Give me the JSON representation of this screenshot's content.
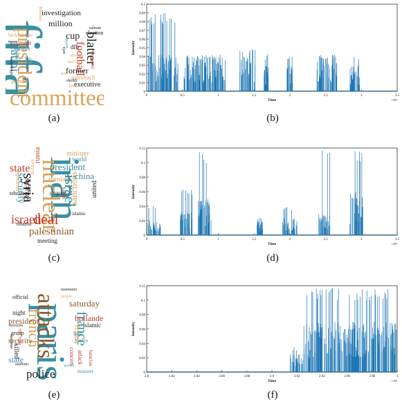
{
  "captions": [
    "(a)",
    "(b)",
    "(c)",
    "(d)",
    "(e)",
    "(f)"
  ],
  "colors": {
    "line": "#1f77b4",
    "teal": "#3a8fa0",
    "tan": "#d9a35c",
    "red": "#c0392b",
    "dark": "#222222",
    "brown": "#8b5a2b"
  },
  "clouds": [
    {
      "words": [
        {
          "t": "fifa",
          "c": "teal"
        },
        {
          "t": "committee",
          "c": "tan"
        },
        {
          "t": "president",
          "c": "tan"
        },
        {
          "t": "platini",
          "c": "teal"
        },
        {
          "t": "blatter",
          "c": "dark"
        },
        {
          "t": "football",
          "c": "red"
        },
        {
          "t": "investigation",
          "c": "dark"
        },
        {
          "t": "million",
          "c": "dark"
        },
        {
          "t": "cup",
          "c": "dark"
        },
        {
          "t": "ethics",
          "c": "teal"
        },
        {
          "t": "former",
          "c": "dark"
        },
        {
          "t": "executive",
          "c": "dark"
        },
        {
          "t": "payment",
          "c": "red"
        },
        {
          "t": "dfb",
          "c": "dark"
        },
        {
          "t": "election",
          "c": "dark"
        },
        {
          "t": "niersbach",
          "c": "tan"
        },
        {
          "t": "beckenbauer",
          "c": "tan"
        },
        {
          "t": "german",
          "c": "tan"
        },
        {
          "t": "soccer",
          "c": "tan"
        },
        {
          "t": "suspended",
          "c": "red"
        },
        {
          "t": "swiss",
          "c": "teal"
        },
        {
          "t": "allegations",
          "c": "dark"
        },
        {
          "t": "salman",
          "c": "dark"
        },
        {
          "t": "officials",
          "c": "tan"
        },
        {
          "t": "world",
          "c": "teal"
        },
        {
          "t": "bin",
          "c": "tan"
        },
        {
          "t": "uefa",
          "c": "dark"
        },
        {
          "t": "michel",
          "c": "teal"
        },
        {
          "t": "sepp",
          "c": "teal"
        },
        {
          "t": "sheikh",
          "c": "dark"
        },
        {
          "t": "bank",
          "c": "tan"
        },
        {
          "t": "morning",
          "c": "tan"
        }
      ]
    },
    {
      "words": [
        {
          "t": "iran",
          "c": "teal"
        },
        {
          "t": "nuclear",
          "c": "tan"
        },
        {
          "t": "israel",
          "c": "teal"
        },
        {
          "t": "deal",
          "c": "red"
        },
        {
          "t": "syria",
          "c": "dark"
        },
        {
          "t": "israeli",
          "c": "red"
        },
        {
          "t": "palestinian",
          "c": "brown"
        },
        {
          "t": "state",
          "c": "red"
        },
        {
          "t": "president",
          "c": "teal"
        },
        {
          "t": "security",
          "c": "teal"
        },
        {
          "t": "sanctions",
          "c": "tan"
        },
        {
          "t": "china",
          "c": "teal"
        },
        {
          "t": "united",
          "c": "dark"
        },
        {
          "t": "russia",
          "c": "red"
        },
        {
          "t": "attacks",
          "c": "dark"
        },
        {
          "t": "iranian",
          "c": "tan"
        },
        {
          "t": "minister",
          "c": "tan"
        },
        {
          "t": "world",
          "c": "teal"
        },
        {
          "t": "obama",
          "c": "dark"
        },
        {
          "t": "tehran",
          "c": "dark"
        },
        {
          "t": "meeting",
          "c": "dark"
        },
        {
          "t": "states",
          "c": "red"
        },
        {
          "t": "islamic",
          "c": "dark"
        },
        {
          "t": "killed",
          "c": "teal"
        },
        {
          "t": "netanyahu",
          "c": "tan"
        },
        {
          "t": "military",
          "c": "tan"
        },
        {
          "t": "program",
          "c": "dark"
        }
      ]
    },
    {
      "words": [
        {
          "t": "paris",
          "c": "teal"
        },
        {
          "t": "attacks",
          "c": "brown"
        },
        {
          "t": "france",
          "c": "teal"
        },
        {
          "t": "french",
          "c": "tan"
        },
        {
          "t": "police",
          "c": "dark"
        },
        {
          "t": "saturday",
          "c": "brown"
        },
        {
          "t": "president",
          "c": "brown"
        },
        {
          "t": "security",
          "c": "brown"
        },
        {
          "t": "hollande",
          "c": "red"
        },
        {
          "t": "friday",
          "c": "tan"
        },
        {
          "t": "state",
          "c": "teal"
        },
        {
          "t": "islamic",
          "c": "dark"
        },
        {
          "t": "concert",
          "c": "red"
        },
        {
          "t": "attack",
          "c": "red"
        },
        {
          "t": "killed",
          "c": "dark"
        },
        {
          "t": "hall",
          "c": "teal"
        },
        {
          "t": "night",
          "c": "dark"
        },
        {
          "t": "group",
          "c": "dark"
        },
        {
          "t": "official",
          "c": "dark"
        },
        {
          "t": "officials",
          "c": "red"
        },
        {
          "t": "statement",
          "c": "dark"
        },
        {
          "t": "stadium",
          "c": "dark"
        },
        {
          "t": "minister",
          "c": "teal"
        },
        {
          "t": "bataclan",
          "c": "red"
        },
        {
          "t": "francois",
          "c": "teal"
        },
        {
          "t": "terrorist",
          "c": "dark"
        },
        {
          "t": "world",
          "c": "teal"
        },
        {
          "t": "attackers",
          "c": "dark"
        },
        {
          "t": "people",
          "c": "tan"
        }
      ]
    }
  ],
  "chart_data": [
    {
      "type": "line",
      "xlabel": "Time",
      "ylabel": "Intensity",
      "xlim": [
        0,
        35000
      ],
      "ylim": [
        0,
        0.1
      ],
      "x_ticks": [
        "0",
        "0.5",
        "1",
        "1.5",
        "2",
        "2.5",
        "3",
        "3.5"
      ],
      "y_ticks": [
        "0",
        "0.01",
        "0.02",
        "0.03",
        "0.04",
        "0.05",
        "0.06",
        "0.07",
        "0.08",
        "0.09",
        "0.1"
      ],
      "x_multiplier": "×10⁴",
      "clusters": [
        {
          "start": 0,
          "end": 4400,
          "peak": 0.09,
          "level": 0.043
        },
        {
          "start": 5200,
          "end": 11000,
          "peak": 0.043,
          "level": 0.04
        },
        {
          "start": 13000,
          "end": 15200,
          "peak": 0.05,
          "level": 0.04
        },
        {
          "start": 16400,
          "end": 17000,
          "peak": 0.043,
          "level": 0.03
        },
        {
          "start": 19600,
          "end": 20400,
          "peak": 0.043,
          "level": 0.03
        },
        {
          "start": 23800,
          "end": 26600,
          "peak": 0.043,
          "level": 0.04
        },
        {
          "start": 28400,
          "end": 29800,
          "peak": 0.043,
          "level": 0.03
        }
      ]
    },
    {
      "type": "line",
      "xlabel": "Time",
      "ylabel": "Intensity",
      "xlim": [
        0,
        35000
      ],
      "ylim": [
        0,
        0.12
      ],
      "x_ticks": [
        "0",
        "0.5",
        "1",
        "1.5",
        "2",
        "2.5",
        "3",
        "3.5"
      ],
      "y_ticks": [
        "0",
        "0.02",
        "0.04",
        "0.06",
        "0.08",
        "0.1",
        "0.12"
      ],
      "x_multiplier": "×10⁴",
      "clusters": [
        {
          "start": 0,
          "end": 2000,
          "peak": 0.04,
          "level": 0.02
        },
        {
          "start": 4600,
          "end": 6400,
          "peak": 0.065,
          "level": 0.035
        },
        {
          "start": 7200,
          "end": 9000,
          "peak": 0.117,
          "level": 0.05
        },
        {
          "start": 15400,
          "end": 16200,
          "peak": 0.025,
          "level": 0.02
        },
        {
          "start": 19000,
          "end": 21000,
          "peak": 0.04,
          "level": 0.025
        },
        {
          "start": 24000,
          "end": 25600,
          "peak": 0.117,
          "level": 0.03
        },
        {
          "start": 28400,
          "end": 30200,
          "peak": 0.117,
          "level": 0.06
        }
      ]
    },
    {
      "type": "line",
      "xlabel": "Time",
      "ylabel": "Intensity",
      "xlim": [
        28000,
        30000
      ],
      "ylim": [
        0,
        0.12
      ],
      "x_ticks": [
        "2.8",
        "2.82",
        "2.84",
        "2.86",
        "2.88",
        "2.9",
        "2.92",
        "2.94",
        "2.96",
        "2.98",
        "3"
      ],
      "y_ticks": [
        "0",
        "0.02",
        "0.04",
        "0.06",
        "0.08",
        "0.1",
        "0.12"
      ],
      "x_multiplier": "×10⁴",
      "clusters": [
        {
          "start": 29140,
          "end": 29250,
          "peak": 0.035,
          "level": 0.025
        },
        {
          "start": 29250,
          "end": 30000,
          "peak": 0.117,
          "level": 0.07
        }
      ]
    }
  ]
}
